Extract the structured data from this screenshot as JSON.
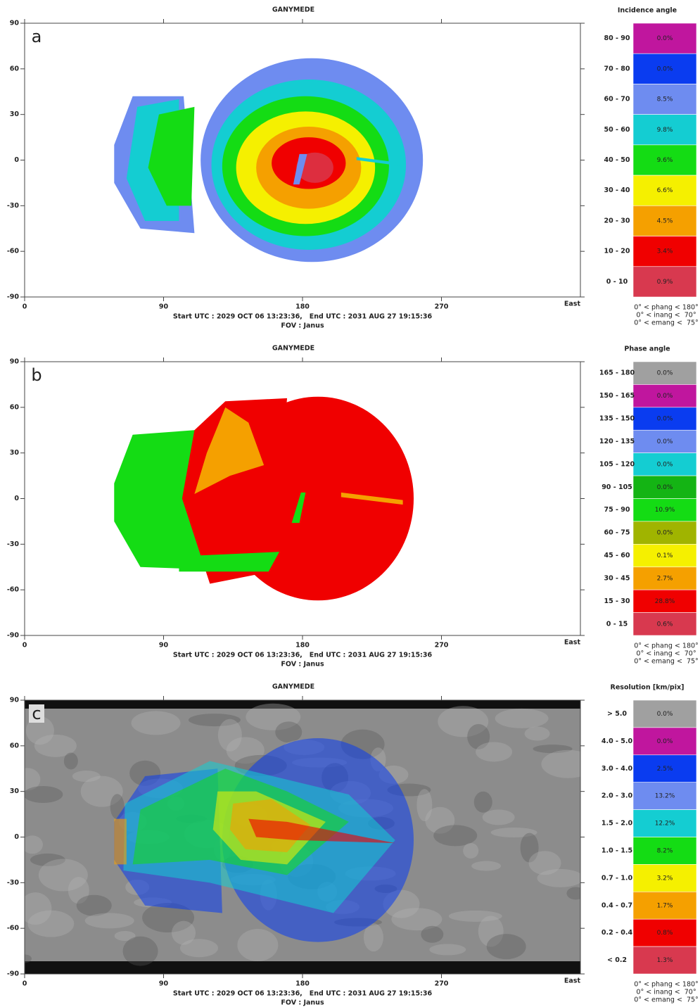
{
  "chart_data": [
    {
      "type": "map",
      "title": "GANYMEDE",
      "panel_label": "a",
      "x_label": "East",
      "xlim": [
        0,
        360
      ],
      "ylim": [
        -90,
        90
      ],
      "xticks": [
        0,
        90,
        180,
        270
      ],
      "yticks": [
        90,
        60,
        30,
        0,
        -30,
        -60,
        -90
      ],
      "start_end": "Start UTC : 2029 OCT 06 13:23:36,   End UTC : 2031 AUG 27 19:15:36",
      "fov": "FOV : Janus",
      "legend_title": "Incidence angle",
      "categories": [
        "80 - 90",
        "70 - 80",
        "60 - 70",
        "50 - 60",
        "40 - 50",
        "30 - 40",
        "20 - 30",
        "10 - 20",
        "0 - 10"
      ],
      "values": [
        0.0,
        0.0,
        8.5,
        9.8,
        9.6,
        6.6,
        4.5,
        3.4,
        0.9
      ],
      "value_labels": [
        "0.0%",
        "0.0%",
        "8.5%",
        "9.8%",
        "9.6%",
        "6.6%",
        "4.5%",
        "3.4%",
        "0.9%"
      ],
      "colors": [
        "#c0169e",
        "#0a3cf0",
        "#6e8cf0",
        "#14cdd2",
        "#14dc14",
        "#f5f000",
        "#f5a000",
        "#f00000",
        "#d8394f"
      ],
      "notes": [
        "0° < phang < 180°",
        "0° < inang <  70°",
        "0° < emang <  75°"
      ]
    },
    {
      "type": "map",
      "title": "GANYMEDE",
      "panel_label": "b",
      "x_label": "East",
      "xlim": [
        0,
        360
      ],
      "ylim": [
        -90,
        90
      ],
      "xticks": [
        0,
        90,
        180,
        270
      ],
      "yticks": [
        90,
        60,
        30,
        0,
        -30,
        -60,
        -90
      ],
      "start_end": "Start UTC : 2029 OCT 06 13:23:36,   End UTC : 2031 AUG 27 19:15:36",
      "fov": "FOV : Janus",
      "legend_title": "Phase angle",
      "categories": [
        "165 - 180",
        "150 - 165",
        "135 - 150",
        "120 - 135",
        "105 - 120",
        "90 - 105",
        "75 - 90",
        "60 - 75",
        "45 - 60",
        "30 - 45",
        "15 - 30",
        "0 - 15"
      ],
      "values": [
        0.0,
        0.0,
        0.0,
        0.0,
        0.0,
        0.0,
        10.9,
        0.0,
        0.1,
        2.7,
        28.8,
        0.6
      ],
      "value_labels": [
        "0.0%",
        "0.0%",
        "0.0%",
        "0.0%",
        "0.0%",
        "0.0%",
        "10.9%",
        "0.0%",
        "0.1%",
        "2.7%",
        "28.8%",
        "0.6%"
      ],
      "colors": [
        "#a0a0a0",
        "#c0169e",
        "#0a3cf0",
        "#6e8cf0",
        "#14cdd2",
        "#14b414",
        "#14dc14",
        "#a0b400",
        "#f5f000",
        "#f5a000",
        "#f00000",
        "#d8394f"
      ],
      "notes": [
        "0° < phang < 180°",
        "0° < inang <  70°",
        "0° < emang <  75°"
      ]
    },
    {
      "type": "map",
      "title": "GANYMEDE",
      "panel_label": "c",
      "x_label": "East",
      "xlim": [
        0,
        360
      ],
      "ylim": [
        -90,
        90
      ],
      "xticks": [
        0,
        90,
        180,
        270
      ],
      "yticks": [
        90,
        60,
        30,
        0,
        -30,
        -60,
        -90
      ],
      "start_end": "Start UTC : 2029 OCT 06 13:23:36,   End UTC : 2031 AUG 27 19:15:36",
      "fov": "FOV : Janus",
      "legend_title": "Resolution [km/pix]",
      "categories": [
        "> 5.0",
        "4.0 - 5.0",
        "3.0 - 4.0",
        "2.0 - 3.0",
        "1.5 - 2.0",
        "1.0 - 1.5",
        "0.7 - 1.0",
        "0.4 - 0.7",
        "0.2 - 0.4",
        "< 0.2"
      ],
      "values": [
        0.0,
        0.0,
        2.5,
        13.2,
        12.2,
        8.2,
        3.2,
        1.7,
        0.8,
        1.3
      ],
      "value_labels": [
        "0.0%",
        "0.0%",
        "2.5%",
        "13.2%",
        "12.2%",
        "8.2%",
        "3.2%",
        "1.7%",
        "0.8%",
        "1.3%"
      ],
      "colors": [
        "#a0a0a0",
        "#c0169e",
        "#0a3cf0",
        "#6e8cf0",
        "#14cdd2",
        "#14dc14",
        "#f5f000",
        "#f5a000",
        "#f00000",
        "#d8394f"
      ],
      "notes": [
        "0° < phang < 180°",
        "0° < inang <  70°",
        "0° < emang <  75°"
      ]
    }
  ]
}
